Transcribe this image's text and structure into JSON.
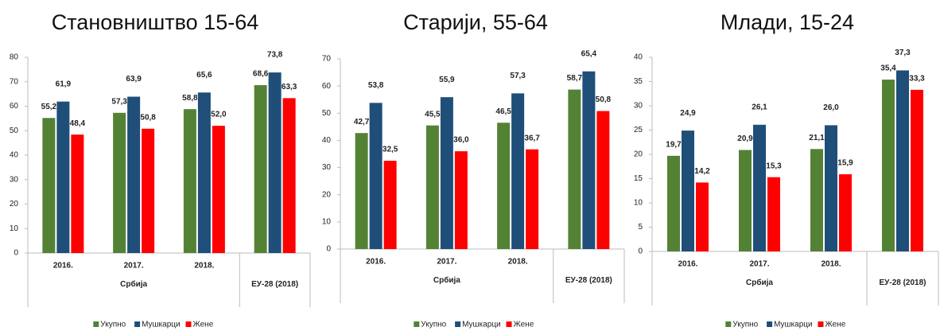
{
  "chart_data": [
    {
      "type": "bar",
      "title": "Становништво 15-64",
      "categories": [
        "2016.",
        "2017.",
        "2018.",
        null
      ],
      "groups": [
        {
          "label": "Србија",
          "size": 3
        },
        {
          "label": "ЕУ-28 (2018)",
          "size": 1
        }
      ],
      "ylim": [
        0,
        80
      ],
      "yticks": [
        0,
        10,
        20,
        30,
        40,
        50,
        60,
        70,
        80
      ],
      "series": [
        {
          "name": "Укупно",
          "color": "#548235",
          "values": [
            55.2,
            57.3,
            58.8,
            68.6
          ],
          "value_labels": [
            "55,2",
            "57,3",
            "58,8",
            "68,6"
          ]
        },
        {
          "name": "Мушкарци",
          "color": "#1f4e79",
          "values": [
            61.9,
            63.9,
            65.6,
            73.8
          ],
          "value_labels": [
            "61,9",
            "63,9",
            "65,6",
            "73,8"
          ]
        },
        {
          "name": "Жене",
          "color": "#ff0000",
          "values": [
            48.4,
            50.8,
            52.0,
            63.3
          ],
          "value_labels": [
            "48,4",
            "50,8",
            "52,0",
            "63,3"
          ]
        }
      ]
    },
    {
      "type": "bar",
      "title": "Старији, 55-64",
      "categories": [
        "2016.",
        "2017.",
        "2018.",
        null
      ],
      "groups": [
        {
          "label": "Србија",
          "size": 3
        },
        {
          "label": "ЕУ-28 (2018)",
          "size": 1
        }
      ],
      "ylim": [
        0,
        70
      ],
      "yticks": [
        0,
        10,
        20,
        30,
        40,
        50,
        60,
        70
      ],
      "series": [
        {
          "name": "Укупно",
          "color": "#548235",
          "values": [
            42.7,
            45.5,
            46.5,
            58.7
          ],
          "value_labels": [
            "42,7",
            "45,5",
            "46,5",
            "58,7"
          ]
        },
        {
          "name": "Мушкарци",
          "color": "#1f4e79",
          "values": [
            53.8,
            55.9,
            57.3,
            65.4
          ],
          "value_labels": [
            "53,8",
            "55,9",
            "57,3",
            "65,4"
          ]
        },
        {
          "name": "Жене",
          "color": "#ff0000",
          "values": [
            32.5,
            36.0,
            36.7,
            50.8
          ],
          "value_labels": [
            "32,5",
            "36,0",
            "36,7",
            "50,8"
          ]
        }
      ]
    },
    {
      "type": "bar",
      "title": "Млади, 15-24",
      "categories": [
        "2016.",
        "2017.",
        "2018.",
        null
      ],
      "groups": [
        {
          "label": "Србија",
          "size": 3
        },
        {
          "label": "ЕУ-28 (2018)",
          "size": 1
        }
      ],
      "ylim": [
        0,
        40
      ],
      "yticks": [
        0,
        5,
        10,
        15,
        20,
        25,
        30,
        35,
        40
      ],
      "series": [
        {
          "name": "Укупно",
          "color": "#548235",
          "values": [
            19.7,
            20.9,
            21.1,
            35.4
          ],
          "value_labels": [
            "19,7",
            "20,9",
            "21,1",
            "35,4"
          ]
        },
        {
          "name": "Мушкарци",
          "color": "#1f4e79",
          "values": [
            24.9,
            26.1,
            26.0,
            37.3
          ],
          "value_labels": [
            "24,9",
            "26,1",
            "26,0",
            "37,3"
          ]
        },
        {
          "name": "Жене",
          "color": "#ff0000",
          "values": [
            14.2,
            15.3,
            15.9,
            33.3
          ],
          "value_labels": [
            "14,2",
            "15,3",
            "15,9",
            "33,3"
          ]
        }
      ]
    }
  ]
}
